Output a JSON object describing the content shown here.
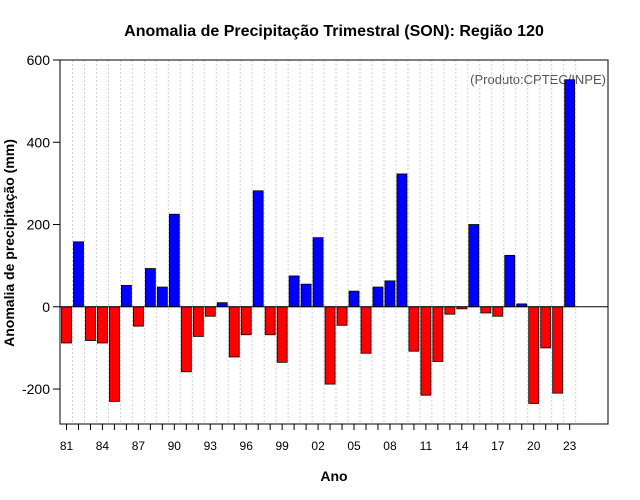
{
  "chart_data": {
    "type": "bar",
    "title": "Anomalia de Precipitação Trimestral (SON): Região 120",
    "xlabel": "Ano",
    "ylabel": "Anomalia de precipitação (mm)",
    "credit": "(Produto:CPTEC/INPE)",
    "ylim": [
      -285,
      600
    ],
    "yticks": [
      -200,
      0,
      200,
      400,
      600
    ],
    "grid": true,
    "colors": {
      "positive": "#0000ff",
      "negative": "#ff0000",
      "outline": "#000000",
      "grid": "#d0d0d0"
    },
    "categories": [
      1981,
      1982,
      1983,
      1984,
      1985,
      1986,
      1987,
      1988,
      1989,
      1990,
      1991,
      1992,
      1993,
      1994,
      1995,
      1996,
      1997,
      1998,
      1999,
      2000,
      2001,
      2002,
      2003,
      2004,
      2005,
      2006,
      2007,
      2008,
      2009,
      2010,
      2011,
      2012,
      2013,
      2014,
      2015,
      2016,
      2017,
      2018,
      2019,
      2020,
      2021,
      2022,
      2023
    ],
    "tick_labels": [
      "81",
      "",
      "",
      "84",
      "",
      "",
      "87",
      "",
      "",
      "90",
      "",
      "",
      "93",
      "",
      "",
      "96",
      "",
      "",
      "99",
      "",
      "",
      "02",
      "",
      "",
      "05",
      "",
      "",
      "08",
      "",
      "",
      "11",
      "",
      "",
      "14",
      "",
      "",
      "17",
      "",
      "",
      "20",
      "",
      "",
      "23"
    ],
    "values": [
      -88,
      158,
      -82,
      -88,
      -230,
      52,
      -47,
      93,
      48,
      225,
      -158,
      -72,
      -23,
      10,
      -122,
      -68,
      282,
      -68,
      -135,
      75,
      55,
      168,
      -188,
      -45,
      38,
      -113,
      48,
      63,
      323,
      -108,
      -215,
      -133,
      -18,
      -5,
      200,
      -15,
      -23,
      125,
      7,
      -235,
      -100,
      -210,
      552
    ]
  }
}
